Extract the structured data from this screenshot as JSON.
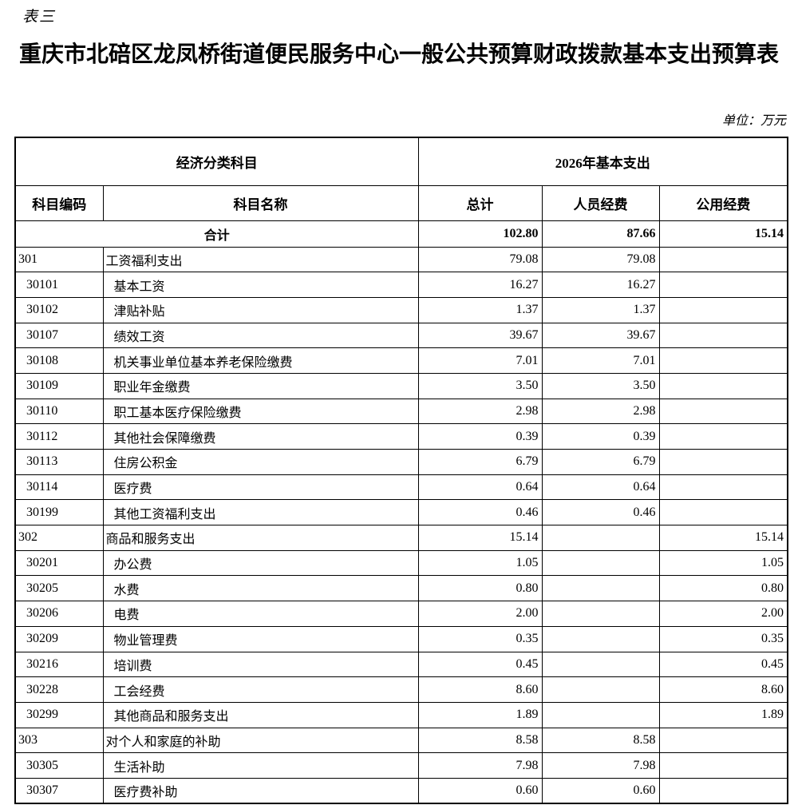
{
  "page": {
    "table_label": "表三",
    "title": "重庆市北碚区龙凤桥街道便民服务中心一般公共预算财政拨款基本支出预算表",
    "unit_note": "单位：万元"
  },
  "table": {
    "header": {
      "group_economic": "经济分类科目",
      "group_year": "2026年基本支出",
      "col_code": "科目编码",
      "col_name": "科目名称",
      "col_total": "总计",
      "col_personnel": "人员经费",
      "col_public": "公用经费"
    },
    "total_row": {
      "label": "合计",
      "total": "102.80",
      "personnel": "87.66",
      "public": "15.14"
    },
    "rows": [
      {
        "code": "301",
        "name": "工资福利支出",
        "level": 1,
        "total": "79.08",
        "personnel": "79.08",
        "public": ""
      },
      {
        "code": "30101",
        "name": "基本工资",
        "level": 2,
        "total": "16.27",
        "personnel": "16.27",
        "public": ""
      },
      {
        "code": "30102",
        "name": "津贴补贴",
        "level": 2,
        "total": "1.37",
        "personnel": "1.37",
        "public": ""
      },
      {
        "code": "30107",
        "name": "绩效工资",
        "level": 2,
        "total": "39.67",
        "personnel": "39.67",
        "public": ""
      },
      {
        "code": "30108",
        "name": "机关事业单位基本养老保险缴费",
        "level": 2,
        "total": "7.01",
        "personnel": "7.01",
        "public": ""
      },
      {
        "code": "30109",
        "name": "职业年金缴费",
        "level": 2,
        "total": "3.50",
        "personnel": "3.50",
        "public": ""
      },
      {
        "code": "30110",
        "name": "职工基本医疗保险缴费",
        "level": 2,
        "total": "2.98",
        "personnel": "2.98",
        "public": ""
      },
      {
        "code": "30112",
        "name": "其他社会保障缴费",
        "level": 2,
        "total": "0.39",
        "personnel": "0.39",
        "public": ""
      },
      {
        "code": "30113",
        "name": "住房公积金",
        "level": 2,
        "total": "6.79",
        "personnel": "6.79",
        "public": ""
      },
      {
        "code": "30114",
        "name": "医疗费",
        "level": 2,
        "total": "0.64",
        "personnel": "0.64",
        "public": ""
      },
      {
        "code": "30199",
        "name": "其他工资福利支出",
        "level": 2,
        "total": "0.46",
        "personnel": "0.46",
        "public": ""
      },
      {
        "code": "302",
        "name": "商品和服务支出",
        "level": 1,
        "total": "15.14",
        "personnel": "",
        "public": "15.14"
      },
      {
        "code": "30201",
        "name": "办公费",
        "level": 2,
        "total": "1.05",
        "personnel": "",
        "public": "1.05"
      },
      {
        "code": "30205",
        "name": "水费",
        "level": 2,
        "total": "0.80",
        "personnel": "",
        "public": "0.80"
      },
      {
        "code": "30206",
        "name": "电费",
        "level": 2,
        "total": "2.00",
        "personnel": "",
        "public": "2.00"
      },
      {
        "code": "30209",
        "name": "物业管理费",
        "level": 2,
        "total": "0.35",
        "personnel": "",
        "public": "0.35"
      },
      {
        "code": "30216",
        "name": "培训费",
        "level": 2,
        "total": "0.45",
        "personnel": "",
        "public": "0.45"
      },
      {
        "code": "30228",
        "name": "工会经费",
        "level": 2,
        "total": "8.60",
        "personnel": "",
        "public": "8.60"
      },
      {
        "code": "30299",
        "name": "其他商品和服务支出",
        "level": 2,
        "total": "1.89",
        "personnel": "",
        "public": "1.89"
      },
      {
        "code": "303",
        "name": "对个人和家庭的补助",
        "level": 1,
        "total": "8.58",
        "personnel": "8.58",
        "public": ""
      },
      {
        "code": "30305",
        "name": "生活补助",
        "level": 2,
        "total": "7.98",
        "personnel": "7.98",
        "public": ""
      },
      {
        "code": "30307",
        "name": "医疗费补助",
        "level": 2,
        "total": "0.60",
        "personnel": "0.60",
        "public": ""
      }
    ]
  }
}
